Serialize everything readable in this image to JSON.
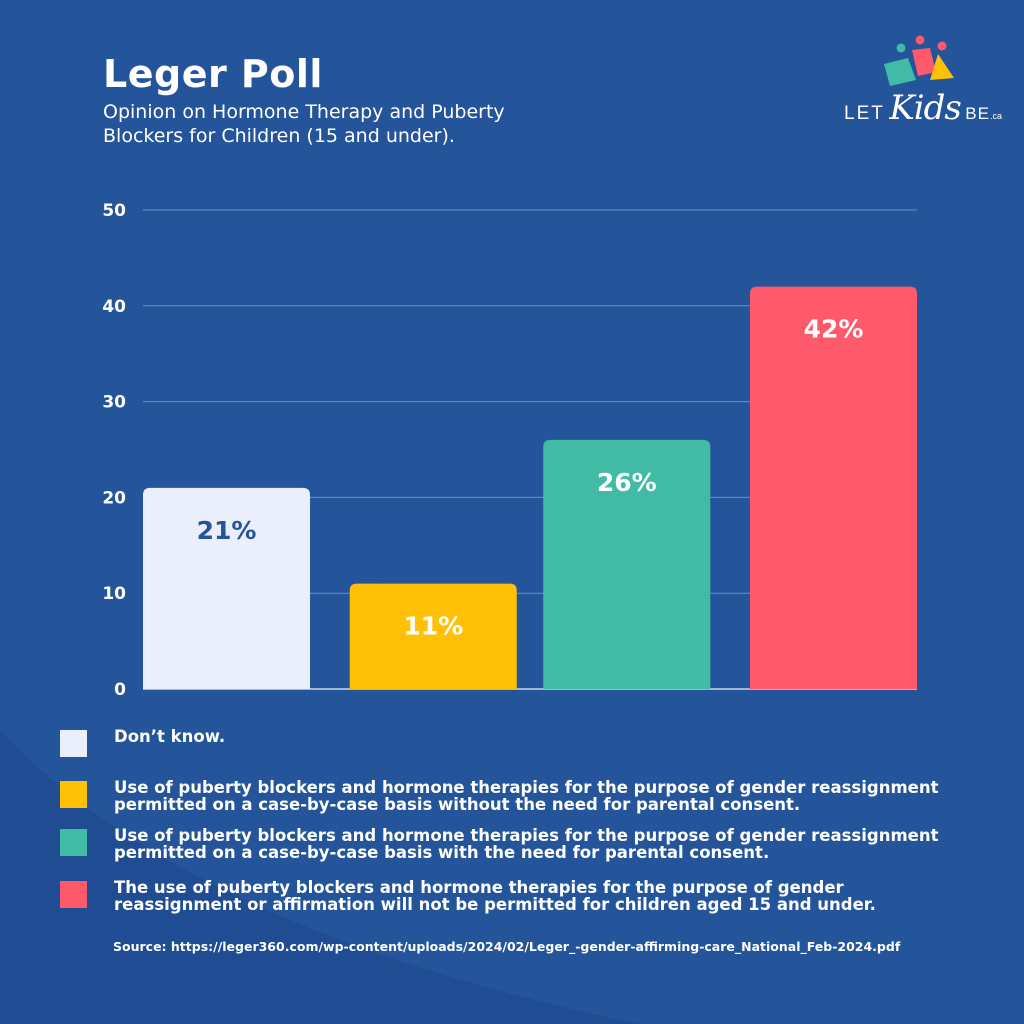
{
  "title": "Leger Poll",
  "subtitle": "Opinion on Hormone Therapy and Puberty Blockers for Children (15 and under).",
  "logo": {
    "let": "LET",
    "kids": "Kids",
    "be": "BE",
    "ca": ".ca",
    "icon": "children-figures-icon"
  },
  "colors": {
    "background": "#24549a",
    "dont_know": "#ebeefb",
    "without_consent": "#ffc107",
    "with_consent": "#42bba6",
    "not_permitted": "#ff5a6b",
    "bar_label_dark": "#24549a",
    "bar_label_light": "#ffffff"
  },
  "chart_data": {
    "type": "bar",
    "categories": [
      "Don’t know.",
      "Use of puberty blockers and hormone therapies for the purpose of gender reassignment permitted on a case-by-case basis without the need for parental consent.",
      "Use of puberty blockers and hormone therapies for the purpose of gender reassignment permitted on a case-by-case basis with the need for parental consent.",
      "The use of puberty blockers and hormone therapies for the purpose of gender reassignment or affirmation will not be permitted for children aged 15 and under."
    ],
    "values": [
      21,
      11,
      26,
      42
    ],
    "data_labels": [
      "21%",
      "11%",
      "26%",
      "42%"
    ],
    "bar_colors": [
      "#ebeefb",
      "#ffc107",
      "#42bba6",
      "#ff5a6b"
    ],
    "ylim": [
      0,
      50
    ],
    "y_ticks": [
      0,
      10,
      20,
      30,
      40,
      50
    ],
    "grid": true,
    "legend_position": "bottom"
  },
  "legend": [
    {
      "label": "Don’t know.",
      "color": "#ebeefb"
    },
    {
      "label": "Use of puberty blockers and hormone therapies for the purpose of gender reassignment permitted on a case-by-case basis without the need for parental consent.",
      "color": "#ffc107"
    },
    {
      "label": "Use of puberty blockers and hormone therapies for the purpose of gender reassignment permitted on a case-by-case basis with the need for parental consent.",
      "color": "#42bba6"
    },
    {
      "label": "The use of puberty blockers and hormone therapies for the purpose of gender reassignment or affirmation will not be permitted for children aged 15 and under.",
      "color": "#ff5a6b"
    }
  ],
  "source": "Source: https://leger360.com/wp-content/uploads/2024/02/Leger_-gender-affirming-care_National_Feb-2024.pdf"
}
